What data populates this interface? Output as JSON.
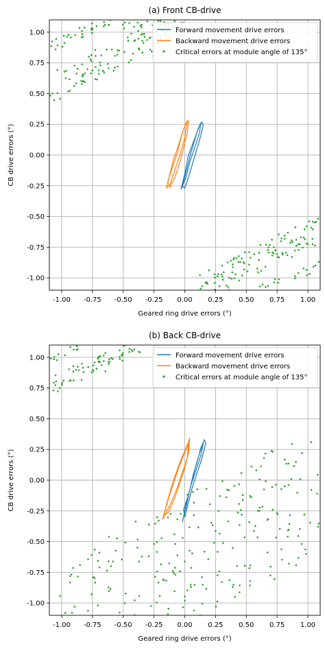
{
  "chart_data": [
    {
      "type": "scatter",
      "title": "(a) Front CB-drive",
      "xlabel": "Geared ring drive errors (°)",
      "ylabel": "CB drive errors (°)",
      "xlim": [
        -1.1,
        1.1
      ],
      "ylim": [
        -1.1,
        1.1
      ],
      "xticks": [
        "-1.00",
        "-0.75",
        "-0.50",
        "-0.25",
        "0.00",
        "0.25",
        "0.50",
        "0.75",
        "1.00"
      ],
      "yticks": [
        "1.00",
        "0.75",
        "0.50",
        "0.25",
        "0.00",
        "-0.25",
        "-0.50",
        "-0.75",
        "-1.00"
      ],
      "grid": true,
      "legend_position": "top-right",
      "series": [
        {
          "name": "Forward movement drive errors",
          "kind": "line",
          "color": "#1f77b4",
          "points": [
            [
              -0.03,
              -0.28
            ],
            [
              0.0,
              -0.15
            ],
            [
              0.03,
              0.0
            ],
            [
              0.06,
              0.08
            ],
            [
              0.09,
              0.16
            ],
            [
              0.12,
              0.24
            ],
            [
              0.14,
              0.27
            ],
            [
              0.15,
              0.24
            ],
            [
              0.12,
              0.12
            ],
            [
              0.09,
              0.02
            ],
            [
              0.06,
              -0.08
            ],
            [
              0.03,
              -0.18
            ],
            [
              0.0,
              -0.27
            ],
            [
              -0.02,
              -0.25
            ],
            [
              0.02,
              -0.1
            ],
            [
              0.05,
              0.02
            ],
            [
              0.08,
              0.12
            ],
            [
              0.11,
              0.22
            ],
            [
              0.13,
              0.26
            ],
            [
              0.12,
              0.18
            ],
            [
              0.08,
              0.06
            ],
            [
              0.04,
              -0.06
            ],
            [
              0.01,
              -0.18
            ],
            [
              -0.03,
              -0.28
            ]
          ]
        },
        {
          "name": "Backward movement drive errors",
          "kind": "line",
          "color": "#ff7f0e",
          "points": [
            [
              -0.15,
              -0.27
            ],
            [
              -0.12,
              -0.15
            ],
            [
              -0.09,
              -0.03
            ],
            [
              -0.05,
              0.08
            ],
            [
              -0.02,
              0.18
            ],
            [
              0.01,
              0.26
            ],
            [
              0.03,
              0.28
            ],
            [
              0.02,
              0.18
            ],
            [
              -0.01,
              0.06
            ],
            [
              -0.04,
              -0.06
            ],
            [
              -0.08,
              -0.18
            ],
            [
              -0.12,
              -0.26
            ],
            [
              -0.14,
              -0.22
            ],
            [
              -0.1,
              -0.1
            ],
            [
              -0.06,
              0.02
            ],
            [
              -0.03,
              0.14
            ],
            [
              0.0,
              0.24
            ],
            [
              0.02,
              0.28
            ],
            [
              0.0,
              0.14
            ],
            [
              -0.04,
              0.0
            ],
            [
              -0.08,
              -0.12
            ],
            [
              -0.12,
              -0.24
            ],
            [
              -0.15,
              -0.27
            ]
          ]
        },
        {
          "name": "Critical errors at module angle of 135°",
          "kind": "dots",
          "color": "#2ca02c",
          "bands": [
            {
              "x0": -1.1,
              "y0": 0.54,
              "x1": 0.0,
              "y1": 1.1,
              "spread": 0.12,
              "count": 120
            },
            {
              "x0": -0.6,
              "y0": 1.1,
              "x1": -1.1,
              "y1": 0.88,
              "spread": 0.05,
              "count": 30
            },
            {
              "x0": -0.5,
              "y0": 1.04,
              "x1": -0.1,
              "y1": 1.1,
              "spread": 0.04,
              "count": 18
            },
            {
              "x0": 0.1,
              "y0": -1.1,
              "x1": 1.1,
              "y1": -0.58,
              "spread": 0.12,
              "count": 120
            },
            {
              "x0": 0.6,
              "y0": -1.1,
              "x1": 1.1,
              "y1": -0.9,
              "spread": 0.04,
              "count": 20
            }
          ]
        }
      ]
    },
    {
      "type": "scatter",
      "title": "(b) Back CB-drive",
      "xlabel": "Geared ring drive errors (°)",
      "ylabel": "CB drive errors (°)",
      "xlim": [
        -1.1,
        1.1
      ],
      "ylim": [
        -1.1,
        1.1
      ],
      "xticks": [
        "-1.00",
        "-0.75",
        "-0.50",
        "-0.25",
        "0.00",
        "0.25",
        "0.50",
        "0.75",
        "1.00"
      ],
      "yticks": [
        "1.00",
        "0.75",
        "0.50",
        "0.25",
        "0.00",
        "-0.25",
        "-0.50",
        "-0.75",
        "-1.00"
      ],
      "grid": true,
      "legend_position": "top-right",
      "series": [
        {
          "name": "Forward movement drive errors",
          "kind": "line",
          "color": "#1f77b4",
          "points": [
            [
              -0.02,
              -0.34
            ],
            [
              0.01,
              -0.22
            ],
            [
              0.04,
              -0.08
            ],
            [
              0.07,
              0.05
            ],
            [
              0.1,
              0.15
            ],
            [
              0.13,
              0.26
            ],
            [
              0.16,
              0.33
            ],
            [
              0.17,
              0.3
            ],
            [
              0.14,
              0.18
            ],
            [
              0.1,
              0.06
            ],
            [
              0.06,
              -0.06
            ],
            [
              0.03,
              -0.18
            ],
            [
              0.0,
              -0.3
            ],
            [
              -0.01,
              -0.24
            ],
            [
              0.03,
              -0.12
            ],
            [
              0.06,
              0.0
            ],
            [
              0.09,
              0.12
            ],
            [
              0.12,
              0.22
            ],
            [
              0.15,
              0.3
            ],
            [
              0.13,
              0.2
            ],
            [
              0.09,
              0.08
            ],
            [
              0.05,
              -0.04
            ],
            [
              0.02,
              -0.16
            ],
            [
              -0.02,
              -0.34
            ]
          ]
        },
        {
          "name": "Backward movement drive errors",
          "kind": "line",
          "color": "#ff7f0e",
          "points": [
            [
              -0.18,
              -0.32
            ],
            [
              -0.15,
              -0.2
            ],
            [
              -0.11,
              -0.06
            ],
            [
              -0.07,
              0.06
            ],
            [
              -0.03,
              0.17
            ],
            [
              0.01,
              0.26
            ],
            [
              0.04,
              0.34
            ],
            [
              0.03,
              0.22
            ],
            [
              0.0,
              0.1
            ],
            [
              -0.04,
              -0.02
            ],
            [
              -0.08,
              -0.14
            ],
            [
              -0.13,
              -0.26
            ],
            [
              -0.17,
              -0.28
            ],
            [
              -0.13,
              -0.14
            ],
            [
              -0.09,
              -0.02
            ],
            [
              -0.05,
              0.1
            ],
            [
              -0.01,
              0.2
            ],
            [
              0.03,
              0.3
            ],
            [
              0.02,
              0.18
            ],
            [
              -0.02,
              0.06
            ],
            [
              -0.06,
              -0.06
            ],
            [
              -0.11,
              -0.18
            ],
            [
              -0.18,
              -0.32
            ]
          ]
        },
        {
          "name": "Critical errors at module angle of 135°",
          "kind": "dots",
          "color": "#2ca02c",
          "bands": [
            {
              "x0": -1.1,
              "y0": 0.76,
              "x1": -0.35,
              "y1": 1.1,
              "spread": 0.08,
              "count": 70
            },
            {
              "x0": -0.85,
              "y0": 1.1,
              "x1": -1.1,
              "y1": 0.97,
              "spread": 0.03,
              "count": 12
            },
            {
              "x0": -0.9,
              "y0": -1.1,
              "x1": 1.1,
              "y1": -0.08,
              "spread": 0.5,
              "count": 260
            }
          ]
        }
      ]
    }
  ]
}
